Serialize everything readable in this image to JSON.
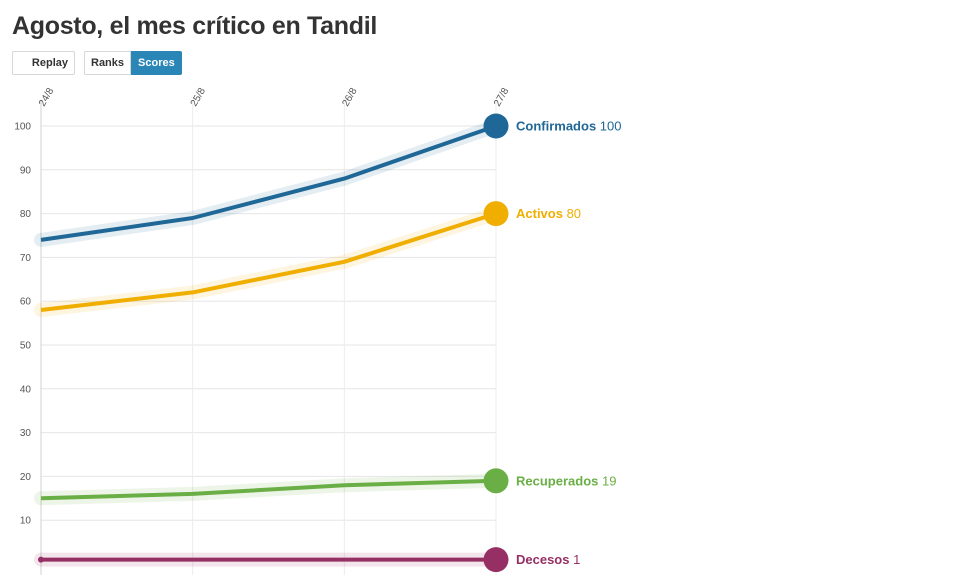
{
  "header": {
    "title": "Agosto, el mes crítico en Tandil"
  },
  "controls": {
    "replay_label": "Replay",
    "ranks_label": "Ranks",
    "scores_label": "Scores",
    "active_mode": "scores"
  },
  "chart_data": {
    "type": "line",
    "title": "Agosto, el mes crítico en Tandil",
    "x": [
      "24/8",
      "25/8",
      "26/8",
      "27/8"
    ],
    "ylim": [
      0,
      100
    ],
    "yticks": [
      10,
      20,
      30,
      40,
      50,
      60,
      70,
      80,
      90,
      100
    ],
    "grid": true,
    "legend": "end-labels",
    "series": [
      {
        "name": "Confirmados",
        "values": [
          74,
          79,
          88,
          100
        ],
        "color": "#1f6796"
      },
      {
        "name": "Activos",
        "values": [
          58,
          62,
          69,
          80
        ],
        "color": "#efae00"
      },
      {
        "name": "Recuperados",
        "values": [
          15,
          16,
          18,
          19
        ],
        "color": "#6aaf46"
      },
      {
        "name": "Decesos",
        "values": [
          1,
          1,
          1,
          1
        ],
        "color": "#963064"
      }
    ]
  }
}
